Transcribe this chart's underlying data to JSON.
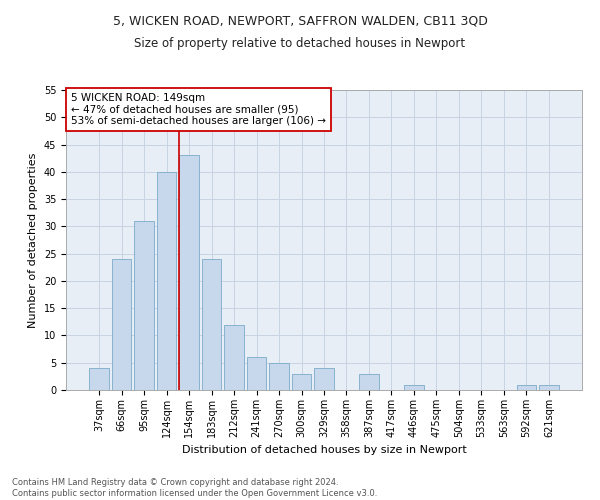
{
  "title": "5, WICKEN ROAD, NEWPORT, SAFFRON WALDEN, CB11 3QD",
  "subtitle": "Size of property relative to detached houses in Newport",
  "xlabel": "Distribution of detached houses by size in Newport",
  "ylabel": "Number of detached properties",
  "categories": [
    "37sqm",
    "66sqm",
    "95sqm",
    "124sqm",
    "154sqm",
    "183sqm",
    "212sqm",
    "241sqm",
    "270sqm",
    "300sqm",
    "329sqm",
    "358sqm",
    "387sqm",
    "417sqm",
    "446sqm",
    "475sqm",
    "504sqm",
    "533sqm",
    "563sqm",
    "592sqm",
    "621sqm"
  ],
  "values": [
    4,
    24,
    31,
    40,
    43,
    24,
    12,
    6,
    5,
    3,
    4,
    0,
    3,
    0,
    1,
    0,
    0,
    0,
    0,
    1,
    1
  ],
  "bar_color": "#c8d8ec",
  "bar_edge_color": "#7aaac8",
  "property_line_color": "#cc0000",
  "annotation_text": "5 WICKEN ROAD: 149sqm\n← 47% of detached houses are smaller (95)\n53% of semi-detached houses are larger (106) →",
  "annotation_box_color": "#ffffff",
  "annotation_box_edge_color": "#cc0000",
  "ylim": [
    0,
    55
  ],
  "yticks": [
    0,
    5,
    10,
    15,
    20,
    25,
    30,
    35,
    40,
    45,
    50,
    55
  ],
  "footer_line1": "Contains HM Land Registry data © Crown copyright and database right 2024.",
  "footer_line2": "Contains public sector information licensed under the Open Government Licence v3.0.",
  "grid_color": "#c8d4e4",
  "bg_color": "#e8eef6",
  "title_fontsize": 9,
  "subtitle_fontsize": 8.5,
  "xlabel_fontsize": 8,
  "ylabel_fontsize": 8,
  "tick_fontsize": 7,
  "annot_fontsize": 7.5,
  "footer_fontsize": 6
}
